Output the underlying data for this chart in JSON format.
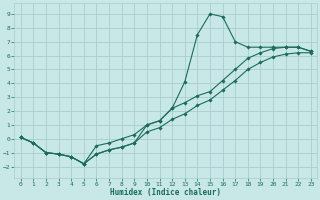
{
  "xlabel": "Humidex (Indice chaleur)",
  "background_color": "#c8e8e8",
  "grid_color": "#a8cccc",
  "line_color": "#1a6b5a",
  "xlim": [
    -0.5,
    23.5
  ],
  "ylim": [
    -2.8,
    9.8
  ],
  "xticks": [
    0,
    1,
    2,
    3,
    4,
    5,
    6,
    7,
    8,
    9,
    10,
    11,
    12,
    13,
    14,
    15,
    16,
    17,
    18,
    19,
    20,
    21,
    22,
    23
  ],
  "yticks": [
    -2,
    -1,
    0,
    1,
    2,
    3,
    4,
    5,
    6,
    7,
    8,
    9
  ],
  "line1_x": [
    0,
    1,
    2,
    3,
    4,
    5,
    6,
    7,
    8,
    9,
    10,
    11,
    12,
    13,
    14,
    15,
    16,
    17,
    18,
    19,
    20,
    21,
    22,
    23
  ],
  "line1_y": [
    0.1,
    -0.3,
    -1.0,
    -1.1,
    -1.3,
    -1.8,
    -1.1,
    -0.8,
    -0.6,
    -0.3,
    1.0,
    1.3,
    2.2,
    4.1,
    7.5,
    9.0,
    8.8,
    7.0,
    6.6,
    6.6,
    6.6,
    6.6,
    6.6,
    6.3
  ],
  "line2_x": [
    0,
    1,
    2,
    3,
    4,
    5,
    6,
    7,
    8,
    9,
    10,
    11,
    12,
    13,
    14,
    15,
    16,
    17,
    18,
    19,
    20,
    21,
    22,
    23
  ],
  "line2_y": [
    0.1,
    -0.3,
    -1.0,
    -1.1,
    -1.3,
    -1.8,
    -0.5,
    -0.3,
    0.0,
    0.3,
    1.0,
    1.3,
    2.2,
    2.6,
    3.1,
    3.4,
    4.2,
    5.0,
    5.8,
    6.2,
    6.5,
    6.6,
    6.6,
    6.3
  ],
  "line3_x": [
    0,
    1,
    2,
    3,
    4,
    5,
    6,
    7,
    8,
    9,
    10,
    11,
    12,
    13,
    14,
    15,
    16,
    17,
    18,
    19,
    20,
    21,
    22,
    23
  ],
  "line3_y": [
    0.1,
    -0.3,
    -1.0,
    -1.1,
    -1.3,
    -1.8,
    -1.1,
    -0.8,
    -0.6,
    -0.3,
    0.5,
    0.8,
    1.4,
    1.8,
    2.4,
    2.8,
    3.5,
    4.2,
    5.0,
    5.5,
    5.9,
    6.1,
    6.2,
    6.2
  ]
}
